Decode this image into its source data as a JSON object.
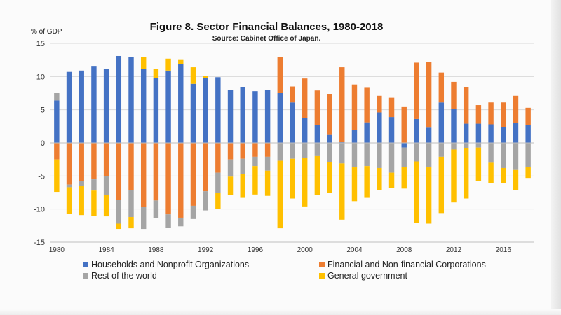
{
  "chart_data": {
    "type": "bar",
    "stacked": true,
    "title": "Figure 8. Sector Financial Balances, 1980-2018",
    "subtitle": "Source: Cabinet Office of Japan.",
    "ylabel": "% of GDP",
    "xlabel": "",
    "ylim": [
      -15,
      15
    ],
    "yticks": [
      -15,
      -10,
      -5,
      0,
      5,
      10,
      15
    ],
    "grid": true,
    "legend_position": "bottom",
    "x": [
      1980,
      1981,
      1982,
      1983,
      1984,
      1985,
      1986,
      1987,
      1988,
      1989,
      1990,
      1991,
      1992,
      1993,
      1994,
      1995,
      1996,
      1997,
      1998,
      1999,
      2000,
      2001,
      2002,
      2003,
      2004,
      2005,
      2006,
      2007,
      2008,
      2009,
      2010,
      2011,
      2012,
      2013,
      2014,
      2015,
      2016,
      2017,
      2018
    ],
    "xtick_labels": [
      "1980",
      "1984",
      "1988",
      "1992",
      "1996",
      "2000",
      "2004",
      "2008",
      "2012",
      "2016"
    ],
    "series": [
      {
        "name": "Households and Nonprofit Organizations",
        "color": "#4472C4",
        "values": [
          6.4,
          10.7,
          10.9,
          11.5,
          11.1,
          13.1,
          12.9,
          11.1,
          9.8,
          10.9,
          11.9,
          8.9,
          9.8,
          9.9,
          8.0,
          8.4,
          7.8,
          8.0,
          7.5,
          6.1,
          3.8,
          2.7,
          1.2,
          0.1,
          2.0,
          3.1,
          4.6,
          3.9,
          -0.7,
          3.6,
          2.3,
          6.1,
          5.1,
          2.9,
          2.9,
          2.8,
          2.4,
          3.0,
          2.7
        ]
      },
      {
        "name": "Financial and Non-financial Corporations",
        "color": "#ED7D31",
        "values": [
          -2.5,
          -6.3,
          -5.8,
          -5.5,
          -5.0,
          -8.6,
          -7.1,
          -9.7,
          -8.7,
          -10.8,
          -11.3,
          -9.5,
          -7.3,
          -4.5,
          -2.5,
          -2.4,
          -2.1,
          -2.1,
          5.4,
          2.4,
          5.9,
          5.2,
          6.1,
          11.3,
          6.8,
          5.2,
          2.5,
          2.9,
          5.4,
          8.5,
          9.9,
          4.5,
          4.1,
          5.5,
          2.8,
          3.3,
          3.7,
          4.1,
          2.6
        ]
      },
      {
        "name": "Rest of the world",
        "color": "#A5A5A5",
        "values": [
          1.1,
          -0.4,
          -0.7,
          -1.7,
          -2.9,
          -3.6,
          -4.1,
          -3.3,
          -2.7,
          -2.0,
          -1.3,
          -2.0,
          -2.9,
          -3.1,
          -2.6,
          -2.3,
          -1.4,
          -2.1,
          -2.7,
          -2.4,
          -2.3,
          -2.0,
          -2.9,
          -3.1,
          -3.7,
          -3.5,
          -3.8,
          -4.5,
          -2.9,
          -2.8,
          -3.7,
          -2.1,
          -1.0,
          -0.8,
          -0.7,
          -3.0,
          -3.8,
          -4.1,
          -3.6
        ]
      },
      {
        "name": "General government",
        "color": "#FFC000",
        "values": [
          -4.9,
          -4.0,
          -4.4,
          -3.8,
          -3.2,
          -0.8,
          -1.7,
          1.8,
          1.3,
          1.8,
          0.6,
          2.5,
          0.3,
          -2.4,
          -2.8,
          -3.6,
          -4.3,
          -3.8,
          -10.2,
          -6.0,
          -7.3,
          -5.9,
          -4.6,
          -8.5,
          -5.1,
          -4.8,
          -3.3,
          -2.3,
          -3.3,
          -9.3,
          -8.5,
          -8.5,
          -8.0,
          -7.6,
          -5.1,
          -3.1,
          -2.3,
          -3.0,
          -1.7
        ]
      }
    ]
  }
}
